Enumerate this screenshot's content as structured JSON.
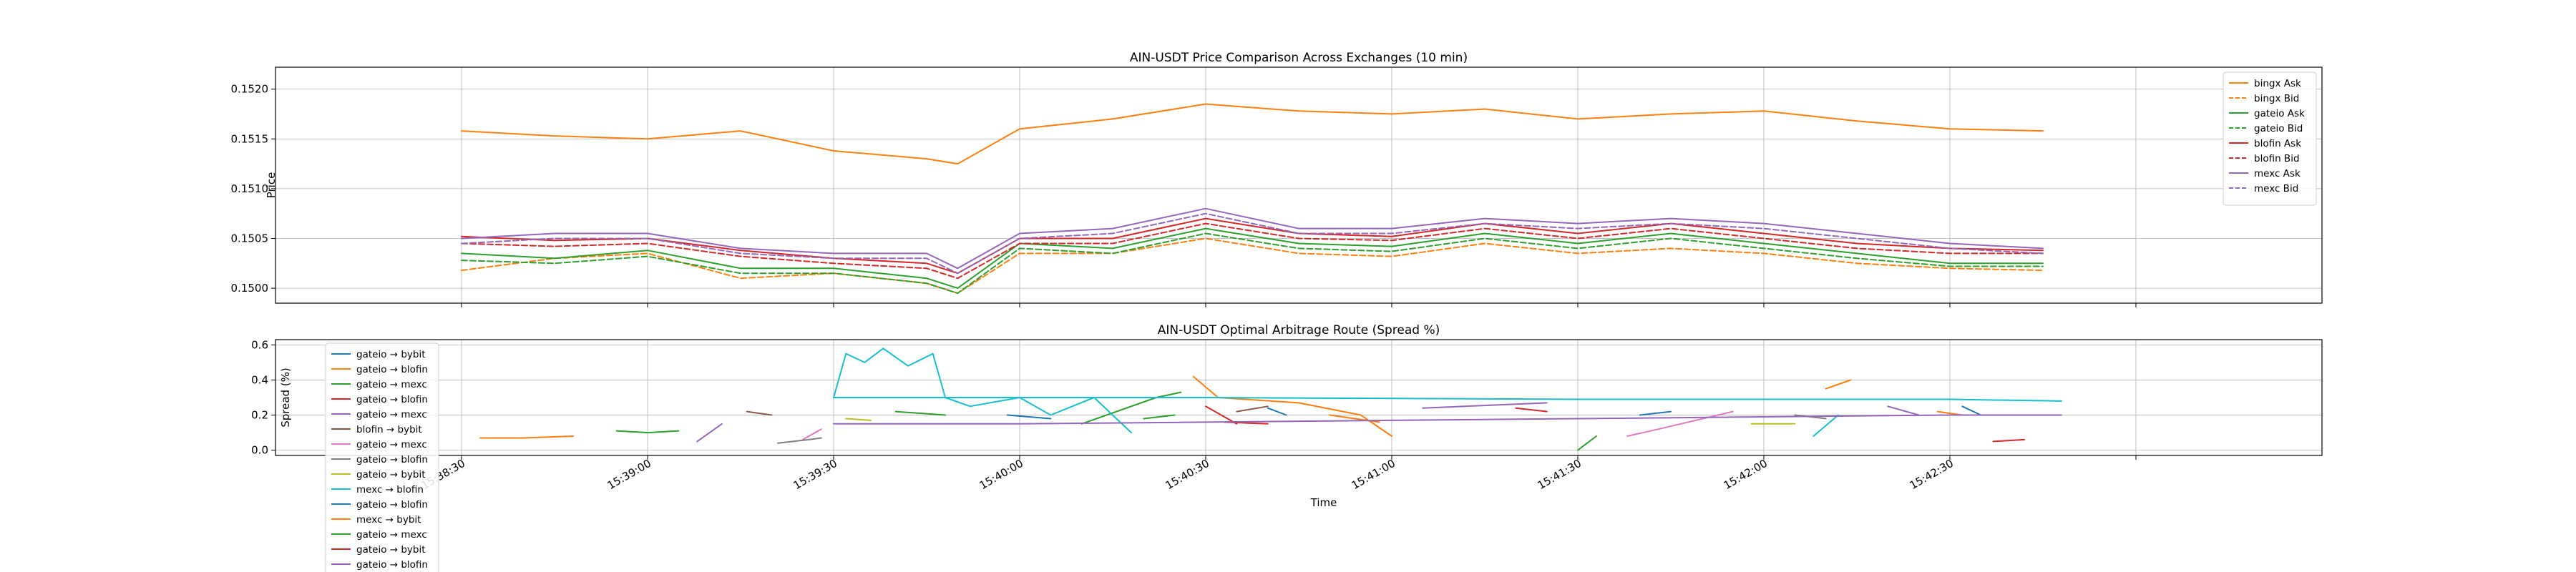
{
  "chart_data": [
    {
      "type": "line",
      "title": "AIN-USDT Price Comparison Across Exchanges (10 min)",
      "xlabel": "",
      "ylabel": "Price",
      "ylim": [
        0.14985,
        0.15222
      ],
      "xlim": [
        "15:38:00",
        "15:43:30"
      ],
      "x_tick_labels": [],
      "y_ticks": [
        0.15,
        0.1505,
        0.151,
        0.1515,
        0.152
      ],
      "y_tick_labels": [
        "0.1500",
        "0.1505",
        "0.1510",
        "0.1515",
        "0.1520"
      ],
      "grid": true,
      "legend_position": "top-right",
      "x_time_points": [
        "15:38:30",
        "15:38:45",
        "15:39:00",
        "15:39:15",
        "15:39:30",
        "15:39:45",
        "15:39:50",
        "15:40:00",
        "15:40:15",
        "15:40:30",
        "15:40:45",
        "15:41:00",
        "15:41:15",
        "15:41:30",
        "15:41:45",
        "15:42:00",
        "15:42:15",
        "15:42:30",
        "15:42:45"
      ],
      "series": [
        {
          "name": "bingx Ask",
          "color": "#ff7f0e",
          "dash": "solid",
          "values": [
            0.15158,
            0.15153,
            0.1515,
            0.15158,
            0.15138,
            0.1513,
            0.15125,
            0.1516,
            0.1517,
            0.15185,
            0.15178,
            0.15175,
            0.1518,
            0.1517,
            0.15175,
            0.15178,
            0.15168,
            0.1516,
            0.15158
          ]
        },
        {
          "name": "bingx Bid",
          "color": "#ff7f0e",
          "dash": "dashed",
          "values": [
            0.15018,
            0.1503,
            0.15035,
            0.1501,
            0.15015,
            0.15005,
            0.14995,
            0.15035,
            0.15035,
            0.1505,
            0.15035,
            0.15032,
            0.15045,
            0.15035,
            0.1504,
            0.15035,
            0.15025,
            0.1502,
            0.15018
          ]
        },
        {
          "name": "gateio Ask",
          "color": "#2ca02c",
          "dash": "solid",
          "values": [
            0.15035,
            0.1503,
            0.15038,
            0.1502,
            0.1502,
            0.1501,
            0.15,
            0.15045,
            0.1504,
            0.1506,
            0.15045,
            0.15042,
            0.15055,
            0.15045,
            0.15055,
            0.15045,
            0.15035,
            0.15025,
            0.15025
          ]
        },
        {
          "name": "gateio Bid",
          "color": "#2ca02c",
          "dash": "dashed",
          "values": [
            0.15028,
            0.15025,
            0.15032,
            0.15015,
            0.15015,
            0.15005,
            0.14995,
            0.1504,
            0.15035,
            0.15055,
            0.1504,
            0.15037,
            0.1505,
            0.1504,
            0.1505,
            0.1504,
            0.1503,
            0.15022,
            0.15022
          ]
        },
        {
          "name": "blofin Ask",
          "color": "#d62728",
          "dash": "solid",
          "values": [
            0.15052,
            0.15048,
            0.1505,
            0.15038,
            0.1503,
            0.15025,
            0.15015,
            0.1505,
            0.1505,
            0.1507,
            0.15055,
            0.15052,
            0.15065,
            0.15055,
            0.15065,
            0.15055,
            0.15045,
            0.1504,
            0.15038
          ]
        },
        {
          "name": "blofin Bid",
          "color": "#d62728",
          "dash": "dashed",
          "values": [
            0.15045,
            0.15042,
            0.15045,
            0.15032,
            0.15025,
            0.1502,
            0.1501,
            0.15045,
            0.15045,
            0.15065,
            0.1505,
            0.15048,
            0.1506,
            0.1505,
            0.1506,
            0.1505,
            0.1504,
            0.15035,
            0.15035
          ]
        },
        {
          "name": "mexc Ask",
          "color": "#9467bd",
          "dash": "solid",
          "values": [
            0.1505,
            0.15055,
            0.15055,
            0.1504,
            0.15035,
            0.15035,
            0.1502,
            0.15055,
            0.1506,
            0.1508,
            0.1506,
            0.1506,
            0.1507,
            0.15065,
            0.1507,
            0.15065,
            0.15055,
            0.15045,
            0.1504
          ]
        },
        {
          "name": "mexc Bid",
          "color": "#9467bd",
          "dash": "dashed",
          "values": [
            0.15045,
            0.1505,
            0.1505,
            0.15035,
            0.1503,
            0.1503,
            0.15015,
            0.1505,
            0.15055,
            0.15075,
            0.15055,
            0.15055,
            0.15065,
            0.1506,
            0.15065,
            0.1506,
            0.1505,
            0.1504,
            0.15035
          ]
        }
      ]
    },
    {
      "type": "line",
      "title": "AIN-USDT Optimal Arbitrage Route (Spread %)",
      "xlabel": "Time",
      "ylabel": "Spread (%)",
      "ylim": [
        -0.03,
        0.63
      ],
      "xlim": [
        "15:38:00",
        "15:43:30"
      ],
      "x_tick_labels": [
        "15:38:30",
        "15:39:00",
        "15:39:30",
        "15:40:00",
        "15:40:30",
        "15:41:00",
        "15:41:30",
        "15:42:00",
        "15:42:30"
      ],
      "y_ticks": [
        0.0,
        0.2,
        0.4,
        0.6
      ],
      "y_tick_labels": [
        "0.0",
        "0.2",
        "0.4",
        "0.6"
      ],
      "grid": true,
      "legend_position": "bottom-left",
      "series": [
        {
          "name": "gateio → bybit",
          "color": "#1f77b4",
          "segments": [
            [
              [
                "15:39:58",
                0.2
              ],
              [
                "15:40:05",
                0.18
              ]
            ],
            [
              [
                "15:41:40",
                0.2
              ],
              [
                "15:41:45",
                0.22
              ]
            ]
          ]
        },
        {
          "name": "gateio → blofin",
          "color": "#ff7f0e",
          "segments": [
            [
              [
                "15:38:33",
                0.07
              ],
              [
                "15:38:40",
                0.07
              ],
              [
                "15:38:48",
                0.08
              ]
            ],
            [
              [
                "15:40:28",
                0.42
              ],
              [
                "15:40:32",
                0.3
              ],
              [
                "15:40:45",
                0.27
              ],
              [
                "15:40:55",
                0.2
              ],
              [
                "15:41:00",
                0.08
              ]
            ],
            [
              [
                "15:42:10",
                0.35
              ],
              [
                "15:42:14",
                0.4
              ]
            ]
          ]
        },
        {
          "name": "gateio → mexc",
          "color": "#2ca02c",
          "segments": [
            [
              [
                "15:38:55",
                0.11
              ],
              [
                "15:39:00",
                0.1
              ],
              [
                "15:39:05",
                0.11
              ]
            ],
            [
              [
                "15:40:10",
                0.15
              ],
              [
                "15:40:22",
                0.3
              ],
              [
                "15:40:26",
                0.33
              ]
            ],
            [
              [
                "15:41:30",
                0.0
              ],
              [
                "15:41:33",
                0.08
              ]
            ]
          ]
        },
        {
          "name": "gateio → blofin",
          "color": "#d62728",
          "segments": [
            [
              [
                "15:40:30",
                0.25
              ],
              [
                "15:40:35",
                0.15
              ]
            ],
            [
              [
                "15:42:37",
                0.05
              ],
              [
                "15:42:42",
                0.06
              ]
            ]
          ]
        },
        {
          "name": "gateio → mexc",
          "color": "#9467bd",
          "segments": [
            [
              [
                "15:39:08",
                0.05
              ],
              [
                "15:39:12",
                0.15
              ]
            ],
            [
              [
                "15:41:05",
                0.24
              ],
              [
                "15:41:25",
                0.27
              ]
            ],
            [
              [
                "15:42:20",
                0.25
              ],
              [
                "15:42:25",
                0.2
              ]
            ]
          ]
        },
        {
          "name": "blofin → bybit",
          "color": "#8c564b",
          "segments": [
            [
              [
                "15:39:16",
                0.22
              ],
              [
                "15:39:20",
                0.2
              ]
            ],
            [
              [
                "15:40:35",
                0.22
              ],
              [
                "15:40:40",
                0.25
              ]
            ]
          ]
        },
        {
          "name": "gateio → mexc",
          "color": "#e377c2",
          "segments": [
            [
              [
                "15:39:25",
                0.06
              ],
              [
                "15:39:28",
                0.12
              ]
            ],
            [
              [
                "15:41:38",
                0.08
              ],
              [
                "15:41:43",
                0.12
              ],
              [
                "15:41:55",
                0.22
              ]
            ]
          ]
        },
        {
          "name": "gateio → blofin",
          "color": "#7f7f7f",
          "segments": [
            [
              [
                "15:39:21",
                0.04
              ],
              [
                "15:39:26",
                0.06
              ],
              [
                "15:39:28",
                0.07
              ]
            ],
            [
              [
                "15:42:05",
                0.2
              ],
              [
                "15:42:10",
                0.18
              ]
            ]
          ]
        },
        {
          "name": "gateio → bybit",
          "color": "#bcbd22",
          "segments": [
            [
              [
                "15:39:32",
                0.18
              ],
              [
                "15:39:36",
                0.17
              ]
            ],
            [
              [
                "15:41:58",
                0.15
              ],
              [
                "15:42:05",
                0.15
              ]
            ]
          ]
        },
        {
          "name": "mexc → blofin",
          "color": "#17becf",
          "segments": [
            [
              [
                "15:39:30",
                0.3
              ],
              [
                "15:39:32",
                0.55
              ],
              [
                "15:39:35",
                0.5
              ],
              [
                "15:39:38",
                0.58
              ],
              [
                "15:39:42",
                0.48
              ],
              [
                "15:39:46",
                0.55
              ],
              [
                "15:39:48",
                0.3
              ],
              [
                "15:39:52",
                0.25
              ],
              [
                "15:40:00",
                0.3
              ],
              [
                "15:40:05",
                0.2
              ],
              [
                "15:40:12",
                0.3
              ],
              [
                "15:40:18",
                0.1
              ]
            ],
            [
              [
                "15:39:30",
                0.3
              ],
              [
                "15:40:30",
                0.3
              ],
              [
                "15:41:30",
                0.29
              ],
              [
                "15:42:30",
                0.29
              ],
              [
                "15:42:48",
                0.28
              ]
            ],
            [
              [
                "15:42:08",
                0.08
              ],
              [
                "15:42:12",
                0.2
              ]
            ]
          ]
        },
        {
          "name": "gateio → blofin",
          "color": "#1f77b4",
          "segments": [
            [
              [
                "15:40:40",
                0.24
              ],
              [
                "15:40:43",
                0.2
              ]
            ],
            [
              [
                "15:42:32",
                0.25
              ],
              [
                "15:42:35",
                0.2
              ]
            ]
          ]
        },
        {
          "name": "mexc → bybit",
          "color": "#ff7f0e",
          "segments": [
            [
              [
                "15:40:50",
                0.2
              ],
              [
                "15:40:58",
                0.16
              ]
            ],
            [
              [
                "15:42:28",
                0.22
              ],
              [
                "15:42:32",
                0.2
              ]
            ]
          ]
        },
        {
          "name": "gateio → mexc",
          "color": "#2ca02c",
          "segments": [
            [
              [
                "15:39:40",
                0.22
              ],
              [
                "15:39:48",
                0.2
              ]
            ],
            [
              [
                "15:40:20",
                0.18
              ],
              [
                "15:40:25",
                0.2
              ]
            ]
          ]
        },
        {
          "name": "gateio → bybit",
          "color": "#d62728",
          "segments": [
            [
              [
                "15:40:33",
                0.16
              ],
              [
                "15:40:40",
                0.15
              ]
            ],
            [
              [
                "15:41:20",
                0.24
              ],
              [
                "15:41:25",
                0.22
              ]
            ]
          ]
        },
        {
          "name": "gateio → blofin",
          "color": "#9467bd",
          "segments": [
            [
              [
                "15:39:30",
                0.15
              ],
              [
                "15:40:00",
                0.15
              ],
              [
                "15:40:30",
                0.16
              ],
              [
                "15:41:00",
                0.17
              ],
              [
                "15:41:30",
                0.18
              ],
              [
                "15:42:00",
                0.19
              ],
              [
                "15:42:30",
                0.2
              ],
              [
                "15:42:48",
                0.2
              ]
            ]
          ]
        }
      ]
    }
  ]
}
